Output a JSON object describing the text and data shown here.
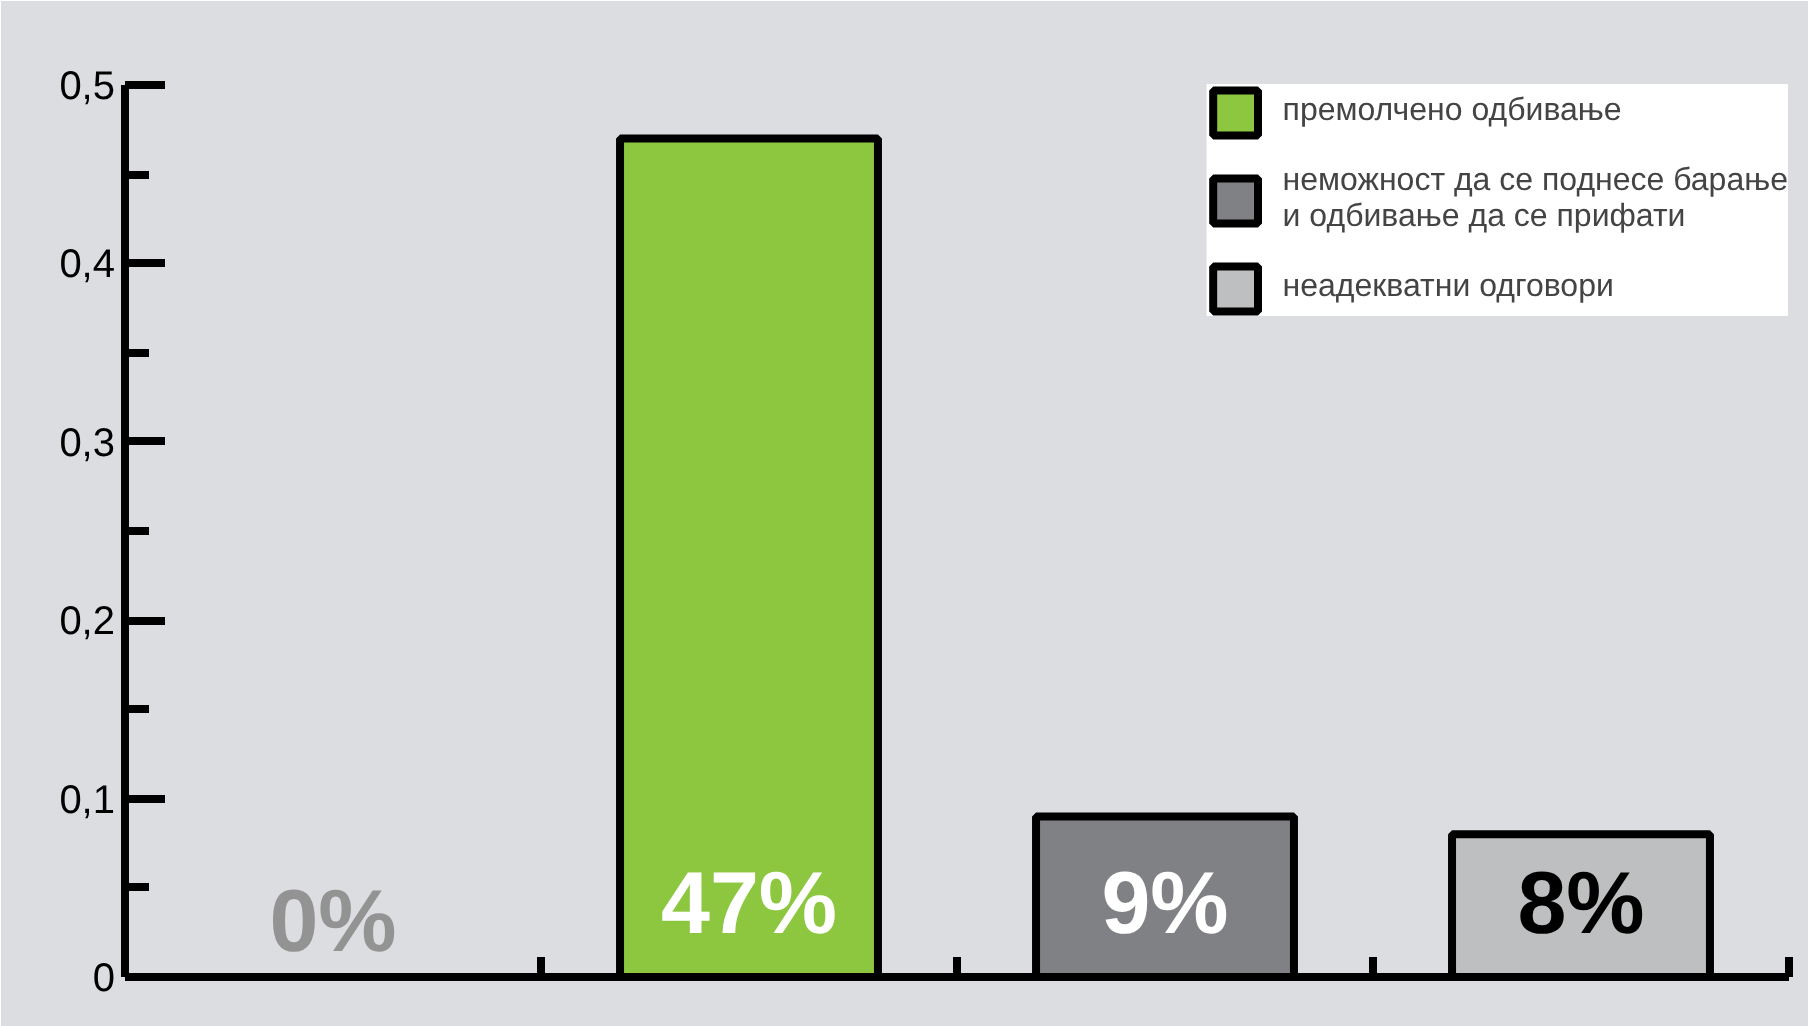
{
  "chart_data": {
    "type": "bar",
    "categories": [
      null,
      null,
      null,
      null
    ],
    "series": [
      {
        "name": "премолчено одбивање",
        "color": "#8dc63f",
        "values": [
          null,
          0.47,
          null,
          null
        ],
        "value_labels": [
          null,
          "47%",
          null,
          null
        ]
      },
      {
        "name": "неможност да се поднесе барање и одбивање да се прифати",
        "color": "#808185",
        "values": [
          null,
          null,
          0.09,
          null
        ],
        "value_labels": [
          null,
          null,
          "9%",
          null
        ]
      },
      {
        "name": "неадекватни одговори",
        "color": "#bebfc1",
        "values": [
          null,
          null,
          null,
          0.08
        ],
        "value_labels": [
          null,
          null,
          null,
          "8%"
        ]
      },
      {
        "color": "#939393",
        "values": [
          0,
          null,
          null,
          null
        ],
        "value_labels": [
          "0%",
          null,
          null,
          null
        ]
      }
    ],
    "ylim": [
      0,
      0.5
    ],
    "yticks": [
      {
        "value": 0,
        "label": "0"
      },
      {
        "value": 0.05,
        "label": null
      },
      {
        "value": 0.1,
        "label": "0,1"
      },
      {
        "value": 0.15,
        "label": null
      },
      {
        "value": 0.2,
        "label": "0,2"
      },
      {
        "value": 0.25,
        "label": null
      },
      {
        "value": 0.3,
        "label": "0,3"
      },
      {
        "value": 0.35,
        "label": null
      },
      {
        "value": 0.4,
        "label": "0,4"
      },
      {
        "value": 0.45,
        "label": null
      },
      {
        "value": 0.5,
        "label": "0,5"
      }
    ],
    "grid": false,
    "legend": "top right"
  }
}
